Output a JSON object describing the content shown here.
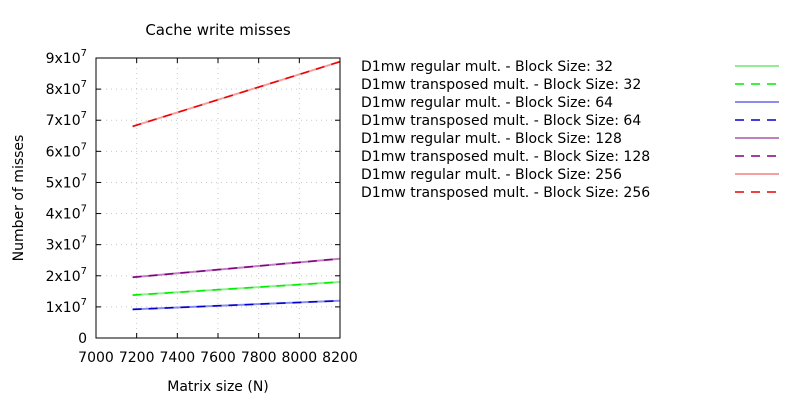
{
  "chart_data": {
    "type": "line",
    "title": "Cache write misses",
    "xlabel": "Matrix size (N)",
    "ylabel": "Number of misses",
    "xlim": [
      7000,
      8200
    ],
    "ylim": [
      0,
      90000000
    ],
    "grid": true,
    "legend_position": "right",
    "x_ticks": [
      {
        "value": 7000,
        "label": "7000"
      },
      {
        "value": 7200,
        "label": "7200"
      },
      {
        "value": 7400,
        "label": "7400"
      },
      {
        "value": 7600,
        "label": "7600"
      },
      {
        "value": 7800,
        "label": "7800"
      },
      {
        "value": 8000,
        "label": "8000"
      },
      {
        "value": 8200,
        "label": "8200"
      }
    ],
    "y_ticks": [
      {
        "value": 0,
        "base": "0",
        "exp": ""
      },
      {
        "value": 10000000,
        "base": "1x10",
        "exp": "7"
      },
      {
        "value": 20000000,
        "base": "2x10",
        "exp": "7"
      },
      {
        "value": 30000000,
        "base": "3x10",
        "exp": "7"
      },
      {
        "value": 40000000,
        "base": "4x10",
        "exp": "7"
      },
      {
        "value": 50000000,
        "base": "5x10",
        "exp": "7"
      },
      {
        "value": 60000000,
        "base": "6x10",
        "exp": "7"
      },
      {
        "value": 70000000,
        "base": "7x10",
        "exp": "7"
      },
      {
        "value": 80000000,
        "base": "8x10",
        "exp": "7"
      },
      {
        "value": 90000000,
        "base": "9x10",
        "exp": "7"
      }
    ],
    "series": [
      {
        "name": "D1mw regular mult. - Block Size: 32",
        "color": "#90ee90",
        "dashed": false,
        "x": [
          7180,
          8200
        ],
        "y": [
          13800000,
          18000000
        ]
      },
      {
        "name": "D1mw transposed mult. - Block Size: 32",
        "color": "#00ee00",
        "dashed": true,
        "x": [
          7180,
          8200
        ],
        "y": [
          13800000,
          18000000
        ]
      },
      {
        "name": "D1mw regular mult. - Block Size: 64",
        "color": "#8c8ced",
        "dashed": false,
        "x": [
          7180,
          8200
        ],
        "y": [
          9200000,
          12000000
        ]
      },
      {
        "name": "D1mw transposed mult. - Block Size: 64",
        "color": "#0000cd",
        "dashed": true,
        "x": [
          7180,
          8200
        ],
        "y": [
          9200000,
          12000000
        ]
      },
      {
        "name": "D1mw regular mult. - Block Size: 128",
        "color": "#c080c0",
        "dashed": false,
        "x": [
          7180,
          8200
        ],
        "y": [
          19500000,
          25500000
        ]
      },
      {
        "name": "D1mw transposed mult. - Block Size: 128",
        "color": "#800080",
        "dashed": true,
        "x": [
          7180,
          8200
        ],
        "y": [
          19500000,
          25500000
        ]
      },
      {
        "name": "D1mw regular mult. - Block Size: 256",
        "color": "#f4a0a0",
        "dashed": false,
        "x": [
          7180,
          8200
        ],
        "y": [
          68000000,
          88800000
        ]
      },
      {
        "name": "D1mw transposed mult. - Block Size: 256",
        "color": "#ee0000",
        "dashed": true,
        "x": [
          7180,
          8200
        ],
        "y": [
          68000000,
          88800000
        ]
      }
    ]
  }
}
